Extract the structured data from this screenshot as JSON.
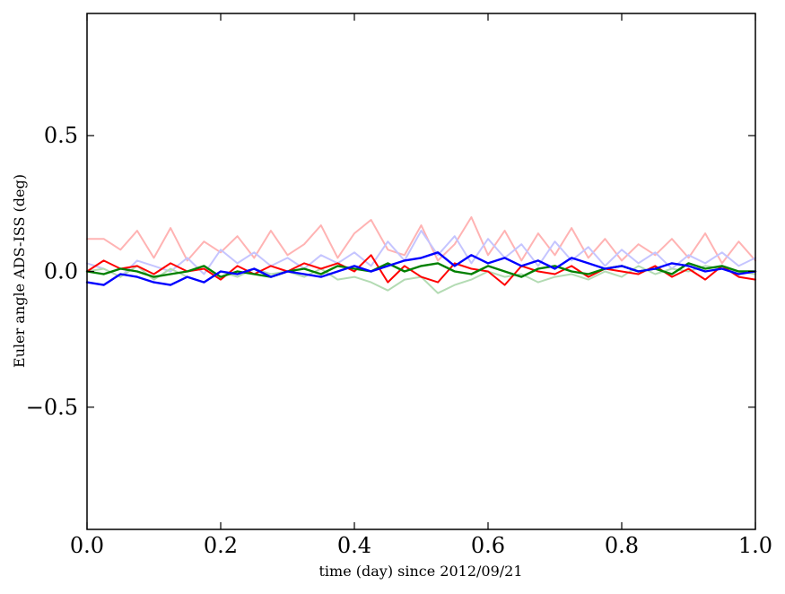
{
  "chart_data": {
    "type": "line",
    "xlabel": "time (day) since 2012/09/21",
    "ylabel": "Euler angle ADS-ISS (deg)",
    "xlim": [
      0.0,
      1.0
    ],
    "ylim": [
      -0.95,
      0.95
    ],
    "x_ticks": [
      0.0,
      0.2,
      0.4,
      0.6,
      0.8,
      1.0
    ],
    "x_tick_labels": [
      "0.0",
      "0.2",
      "0.4",
      "0.6",
      "0.8",
      "1.0"
    ],
    "y_ticks": [
      0.5,
      0.0,
      -0.5
    ],
    "y_tick_labels": [
      "0.5",
      "0.0",
      "−0.5"
    ],
    "grid": false,
    "legend": "none",
    "x": [
      0.0,
      0.025,
      0.05,
      0.075,
      0.1,
      0.125,
      0.15,
      0.175,
      0.2,
      0.225,
      0.25,
      0.275,
      0.3,
      0.325,
      0.35,
      0.375,
      0.4,
      0.425,
      0.45,
      0.475,
      0.5,
      0.525,
      0.55,
      0.575,
      0.6,
      0.625,
      0.65,
      0.675,
      0.7,
      0.725,
      0.75,
      0.775,
      0.8,
      0.825,
      0.85,
      0.875,
      0.9,
      0.925,
      0.95,
      0.975,
      1.0
    ],
    "series": [
      {
        "color": "#ffb3b3",
        "width": 2,
        "values": [
          0.12,
          0.12,
          0.08,
          0.15,
          0.05,
          0.16,
          0.04,
          0.11,
          0.07,
          0.13,
          0.05,
          0.15,
          0.06,
          0.1,
          0.17,
          0.05,
          0.14,
          0.19,
          0.08,
          0.06,
          0.17,
          0.04,
          0.1,
          0.2,
          0.06,
          0.15,
          0.04,
          0.14,
          0.06,
          0.16,
          0.05,
          0.12,
          0.04,
          0.1,
          0.06,
          0.12,
          0.05,
          0.14,
          0.03,
          0.11,
          0.04
        ]
      },
      {
        "color": "#c5c5ff",
        "width": 2,
        "values": [
          0.03,
          0.01,
          -0.02,
          0.04,
          0.02,
          0.0,
          0.05,
          -0.01,
          0.08,
          0.03,
          0.07,
          0.02,
          0.05,
          0.01,
          0.06,
          0.03,
          0.07,
          0.02,
          0.11,
          0.04,
          0.15,
          0.06,
          0.13,
          0.03,
          0.12,
          0.05,
          0.1,
          0.02,
          0.11,
          0.04,
          0.09,
          0.02,
          0.08,
          0.03,
          0.07,
          0.01,
          0.06,
          0.03,
          0.07,
          0.02,
          0.05
        ]
      },
      {
        "color": "#b3dbb3",
        "width": 2,
        "values": [
          0.0,
          0.01,
          -0.02,
          0.02,
          -0.03,
          0.01,
          -0.02,
          -0.04,
          0.0,
          -0.02,
          0.01,
          -0.01,
          0.0,
          -0.02,
          0.01,
          -0.03,
          -0.02,
          -0.04,
          -0.07,
          -0.03,
          -0.02,
          -0.08,
          -0.05,
          -0.03,
          0.0,
          -0.02,
          -0.01,
          -0.04,
          -0.02,
          -0.01,
          -0.03,
          0.0,
          -0.02,
          0.02,
          -0.01,
          0.01,
          0.0,
          0.02,
          0.01,
          0.0,
          -0.01
        ]
      },
      {
        "color": "#ff0000",
        "width": 2,
        "values": [
          0.0,
          0.04,
          0.01,
          0.02,
          -0.01,
          0.03,
          0.0,
          0.01,
          -0.03,
          0.02,
          -0.01,
          0.02,
          0.0,
          0.03,
          0.01,
          0.03,
          0.0,
          0.06,
          -0.04,
          0.02,
          -0.02,
          -0.04,
          0.03,
          0.01,
          0.0,
          -0.05,
          0.02,
          0.0,
          -0.01,
          0.02,
          -0.02,
          0.01,
          0.0,
          -0.01,
          0.02,
          -0.02,
          0.01,
          -0.03,
          0.02,
          -0.02,
          -0.03
        ]
      },
      {
        "color": "#008000",
        "width": 2.4,
        "values": [
          0.0,
          -0.01,
          0.01,
          0.0,
          -0.02,
          -0.01,
          0.0,
          0.02,
          -0.02,
          0.0,
          -0.01,
          -0.02,
          0.0,
          0.01,
          -0.01,
          0.02,
          0.01,
          0.0,
          0.03,
          0.0,
          0.02,
          0.03,
          0.0,
          -0.01,
          0.02,
          0.0,
          -0.02,
          0.01,
          0.02,
          0.0,
          -0.01,
          0.01,
          0.02,
          0.0,
          0.01,
          -0.01,
          0.03,
          0.01,
          0.02,
          0.0,
          0.0
        ]
      },
      {
        "color": "#0000ff",
        "width": 2.4,
        "values": [
          -0.04,
          -0.05,
          -0.01,
          -0.02,
          -0.04,
          -0.05,
          -0.02,
          -0.04,
          0.0,
          -0.01,
          0.01,
          -0.02,
          0.0,
          -0.01,
          -0.02,
          0.0,
          0.02,
          0.0,
          0.02,
          0.04,
          0.05,
          0.07,
          0.02,
          0.06,
          0.03,
          0.05,
          0.02,
          0.04,
          0.01,
          0.05,
          0.03,
          0.01,
          0.02,
          0.0,
          0.01,
          0.03,
          0.02,
          0.0,
          0.01,
          -0.01,
          0.0
        ]
      }
    ]
  }
}
